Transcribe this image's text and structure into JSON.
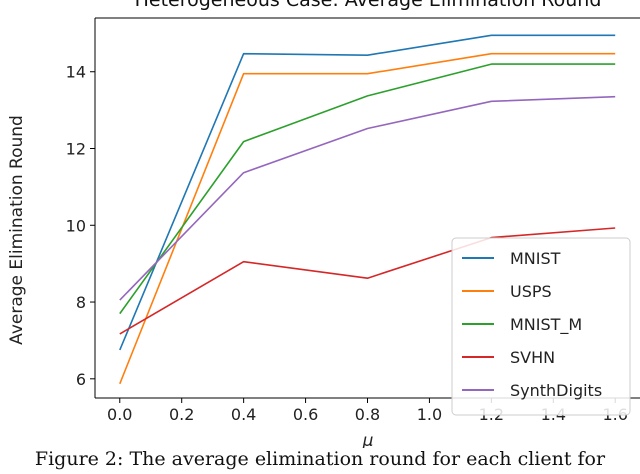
{
  "chart_data": {
    "type": "line",
    "title": "Heterogeneous Case: Average Elimination Round",
    "xlabel": "μ",
    "ylabel": "Average Elimination Round",
    "x": [
      0.0,
      0.4,
      0.8,
      1.2,
      1.6
    ],
    "xticks": [
      "0.0",
      "0.2",
      "0.4",
      "0.6",
      "0.8",
      "1.0",
      "1.2",
      "1.4",
      "1.6"
    ],
    "yticks": [
      "6",
      "8",
      "10",
      "12",
      "14"
    ],
    "xlim": [
      -0.08,
      1.68
    ],
    "ylim": [
      5.5,
      15.4
    ],
    "grid": false,
    "legend_position": "lower-right",
    "series": [
      {
        "name": "MNIST",
        "color": "#1f77b4",
        "values": [
          6.75,
          14.47,
          14.43,
          14.95,
          14.95
        ]
      },
      {
        "name": "USPS",
        "color": "#ff7f0e",
        "values": [
          5.87,
          13.95,
          13.95,
          14.47,
          14.47
        ]
      },
      {
        "name": "MNIST_M",
        "color": "#2ca02c",
        "values": [
          7.7,
          12.18,
          13.37,
          14.2,
          14.2
        ]
      },
      {
        "name": "SVHN",
        "color": "#d62728",
        "values": [
          7.17,
          9.05,
          8.62,
          9.68,
          9.93
        ]
      },
      {
        "name": "SynthDigits",
        "color": "#9467bd",
        "values": [
          8.05,
          11.37,
          12.52,
          13.23,
          13.35
        ]
      }
    ]
  },
  "caption": "Figure 2: The average elimination round for each client for"
}
